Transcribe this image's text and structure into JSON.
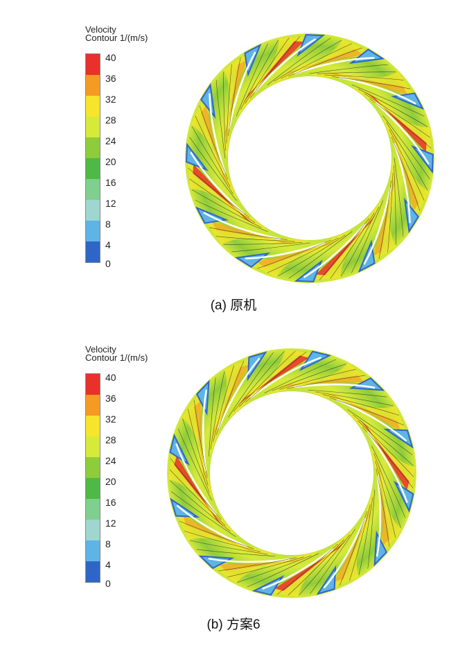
{
  "panels": [
    {
      "legend_title_1": "Velocity",
      "legend_title_2": "Contour 1/(m/s)",
      "ticks": [
        "40",
        "36",
        "32",
        "28",
        "24",
        "20",
        "16",
        "12",
        "8",
        "4",
        "0"
      ],
      "caption": "(a) 原机"
    },
    {
      "legend_title_1": "Velocity",
      "legend_title_2": "Contour 1/(m/s)",
      "ticks": [
        "40",
        "36",
        "32",
        "28",
        "24",
        "20",
        "16",
        "12",
        "8",
        "4",
        "0"
      ],
      "caption": "(b) 方案6"
    }
  ],
  "colors": {
    "band_40": "#e8312a",
    "band_36": "#f59a23",
    "band_32": "#f7e52b",
    "band_28": "#d7ea3a",
    "band_24": "#8fcc3b",
    "band_20": "#4fb947",
    "band_16": "#7fcf8f",
    "band_12": "#9ed7cf",
    "band_8": "#5fb4e6",
    "band_4": "#2f66c6"
  }
}
